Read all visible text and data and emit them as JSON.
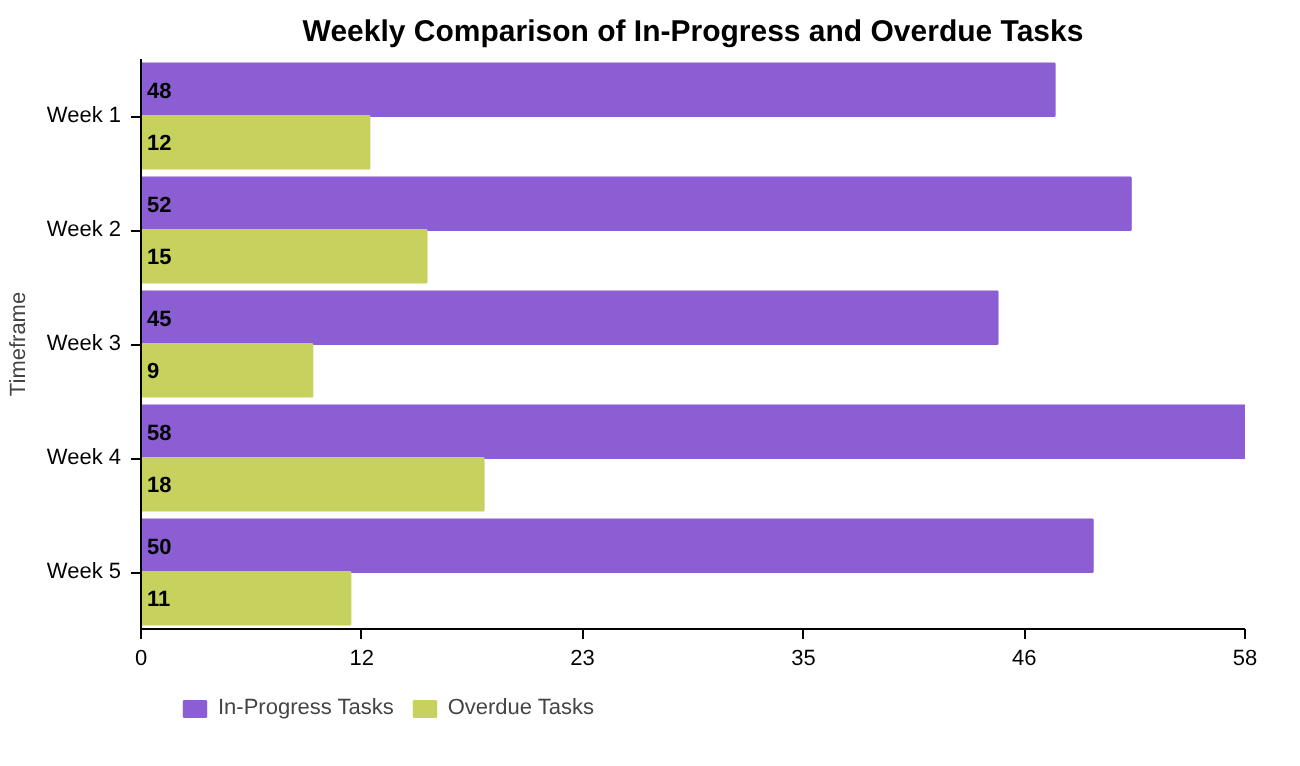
{
  "chart_data": {
    "type": "bar",
    "orientation": "horizontal",
    "title": "Weekly Comparison of In-Progress and Overdue Tasks",
    "ylabel": "Timeframe",
    "categories": [
      "Week 1",
      "Week 2",
      "Week 3",
      "Week 4",
      "Week 5"
    ],
    "series": [
      {
        "name": "In-Progress Tasks",
        "color": "#8b5fd3",
        "values": [
          48,
          52,
          45,
          58,
          50
        ]
      },
      {
        "name": "Overdue Tasks",
        "color": "#c6d15e",
        "values": [
          12,
          15,
          9,
          18,
          11
        ]
      }
    ],
    "xlim": [
      0,
      58
    ],
    "xticks": [
      0,
      {
        "value": 11.6,
        "label": "12"
      },
      {
        "value": 23.2,
        "label": "23"
      },
      {
        "value": 34.8,
        "label": "35"
      },
      {
        "value": 46.4,
        "label": "46"
      },
      58
    ],
    "data_labels": true,
    "legend": "bottom left",
    "grid": false
  }
}
